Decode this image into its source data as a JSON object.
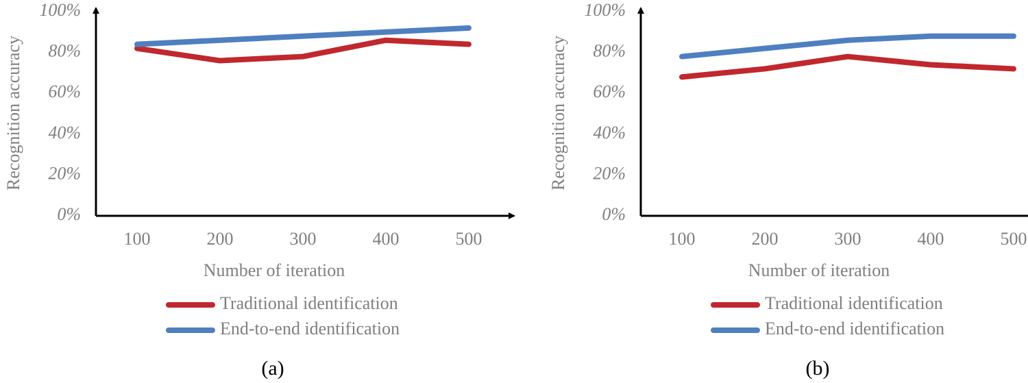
{
  "chart_data": [
    {
      "type": "line",
      "caption": "(a)",
      "ylabel": "Recognition accuracy",
      "xlabel": "Number of iteration",
      "categories": [
        "100",
        "200",
        "300",
        "400",
        "500"
      ],
      "series": [
        {
          "name": "Traditional identification",
          "color": "#c0282d",
          "values": [
            82,
            76,
            78,
            86,
            84
          ]
        },
        {
          "name": "End-to-end identification",
          "color": "#4e7fc0",
          "values": [
            84,
            86,
            88,
            90,
            92
          ]
        }
      ],
      "ylim": [
        0,
        100
      ],
      "yticks": [
        {
          "value": 0,
          "label": "0%"
        },
        {
          "value": 20,
          "label": "20%"
        },
        {
          "value": 40,
          "label": "40%"
        },
        {
          "value": 60,
          "label": "60%"
        },
        {
          "value": 80,
          "label": "80%"
        },
        {
          "value": 100,
          "label": "100%"
        }
      ]
    },
    {
      "type": "line",
      "caption": "(b)",
      "ylabel": "Recognition accuracy",
      "xlabel": "Number of iteration",
      "categories": [
        "100",
        "200",
        "300",
        "400",
        "500"
      ],
      "series": [
        {
          "name": "Traditional identification",
          "color": "#c0282d",
          "values": [
            68,
            72,
            78,
            74,
            72
          ]
        },
        {
          "name": "End-to-end identification",
          "color": "#4e7fc0",
          "values": [
            78,
            82,
            86,
            88,
            88
          ]
        }
      ],
      "ylim": [
        0,
        100
      ],
      "yticks": [
        {
          "value": 0,
          "label": "0%"
        },
        {
          "value": 20,
          "label": "20%"
        },
        {
          "value": 40,
          "label": "40%"
        },
        {
          "value": 60,
          "label": "60%"
        },
        {
          "value": 80,
          "label": "80%"
        },
        {
          "value": 100,
          "label": "100%"
        }
      ]
    }
  ]
}
